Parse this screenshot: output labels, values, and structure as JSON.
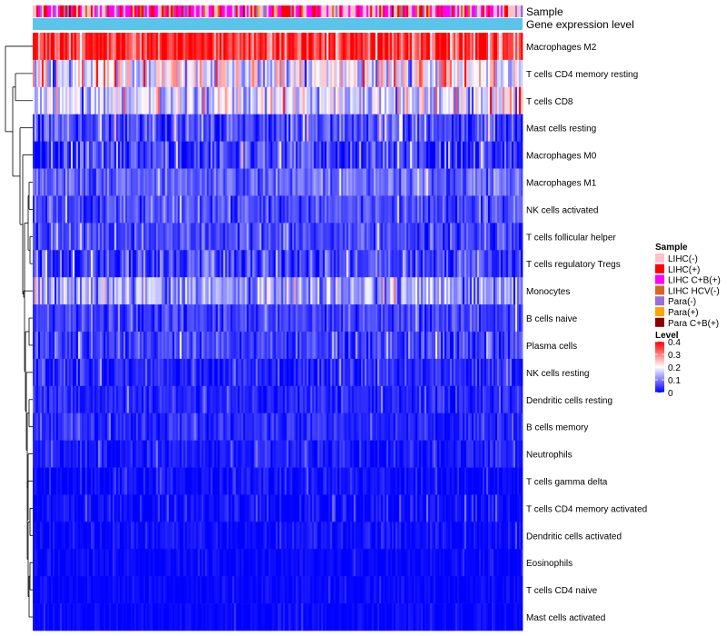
{
  "chart_data": {
    "type": "heatmap",
    "annotations": [
      {
        "id": "sample",
        "label": "Sample"
      },
      {
        "id": "gene",
        "label": "Gene expression level"
      }
    ],
    "rows": [
      {
        "label": "Macrophages M2",
        "mean": 0.36,
        "spread": 0.06
      },
      {
        "label": "T cells CD4 memory resting",
        "mean": 0.19,
        "spread": 0.07
      },
      {
        "label": "T cells CD8",
        "mean": 0.16,
        "spread": 0.06
      },
      {
        "label": "Mast cells resting",
        "mean": 0.06,
        "spread": 0.04
      },
      {
        "label": "Macrophages M0",
        "mean": 0.05,
        "spread": 0.05
      },
      {
        "label": "Macrophages M1",
        "mean": 0.08,
        "spread": 0.03
      },
      {
        "label": "NK cells activated",
        "mean": 0.06,
        "spread": 0.03
      },
      {
        "label": "T cells follicular helper",
        "mean": 0.05,
        "spread": 0.03
      },
      {
        "label": "T cells regulatory  Tregs",
        "mean": 0.05,
        "spread": 0.04
      },
      {
        "label": "Monocytes",
        "mean": 0.12,
        "spread": 0.05
      },
      {
        "label": "B cells naive",
        "mean": 0.05,
        "spread": 0.03
      },
      {
        "label": "Plasma cells",
        "mean": 0.05,
        "spread": 0.03
      },
      {
        "label": "NK cells resting",
        "mean": 0.03,
        "spread": 0.03
      },
      {
        "label": "Dendritic cells resting",
        "mean": 0.03,
        "spread": 0.02
      },
      {
        "label": "B cells memory",
        "mean": 0.03,
        "spread": 0.02
      },
      {
        "label": "Neutrophils",
        "mean": 0.02,
        "spread": 0.02
      },
      {
        "label": "T cells gamma delta",
        "mean": 0.01,
        "spread": 0.02
      },
      {
        "label": "T cells CD4 memory activated",
        "mean": 0.01,
        "spread": 0.02
      },
      {
        "label": "Dendritic cells activated",
        "mean": 0.01,
        "spread": 0.015
      },
      {
        "label": "Eosinophils",
        "mean": 0.005,
        "spread": 0.01
      },
      {
        "label": "T cells CD4 naive",
        "mean": 0.005,
        "spread": 0.01
      },
      {
        "label": "Mast cells activated",
        "mean": 0.005,
        "spread": 0.01
      }
    ],
    "n_samples": 270,
    "color_scale": {
      "min": 0,
      "max": 0.4,
      "colors": [
        "#0000ff",
        "#ffffff",
        "#ff0000"
      ]
    },
    "legend": {
      "sample_title": "Sample",
      "sample_items": [
        {
          "label": "LIHC(-)",
          "color": "#ffc0cb"
        },
        {
          "label": "LIHC(+)",
          "color": "#ff0000"
        },
        {
          "label": "LIHC C+B(+)",
          "color": "#ff00ff"
        },
        {
          "label": "LIHC HCV(-)",
          "color": "#d2691e"
        },
        {
          "label": "Para(-)",
          "color": "#9370db"
        },
        {
          "label": "Para(+)",
          "color": "#ffa500"
        },
        {
          "label": "Para C+B(+)",
          "color": "#8b0000"
        }
      ],
      "sample_weights": [
        0.35,
        0.2,
        0.3,
        0.04,
        0.08,
        0.02,
        0.01
      ],
      "level_title": "Level",
      "level_ticks": [
        "0.4",
        "0.3",
        "0.2",
        "0.1",
        "0"
      ],
      "level_values": [
        0.4,
        0.3,
        0.2,
        0.1,
        0
      ]
    },
    "gene_bar_color": "#5bc4ea",
    "dendrogram_position": "left",
    "legend_position": "right"
  }
}
